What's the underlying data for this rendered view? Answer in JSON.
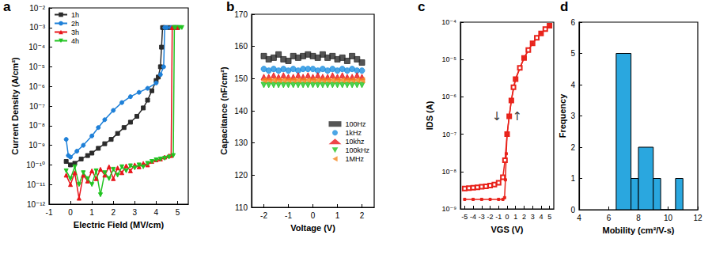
{
  "chart_data": [
    {
      "type": "line",
      "title": "a",
      "xlabel": "Electric Field (MV/cm)",
      "ylabel": "Current Density (A/cm²)",
      "xlim": [
        -1,
        5.5
      ],
      "xticks": [
        -1,
        0,
        1,
        2,
        3,
        4,
        5
      ],
      "ylim": [
        1e-12,
        0.01
      ],
      "yticks": [
        {
          "value": 1e-12,
          "label": "10⁻¹²"
        },
        {
          "value": 1e-11,
          "label": "10⁻¹¹"
        },
        {
          "value": 1e-10,
          "label": "10⁻¹⁰"
        },
        {
          "value": 1e-09,
          "label": "10⁻⁹"
        },
        {
          "value": 1e-08,
          "label": "10⁻⁸"
        },
        {
          "value": 1e-07,
          "label": "10⁻⁷"
        },
        {
          "value": 1e-06,
          "label": "10⁻⁶"
        },
        {
          "value": 1e-05,
          "label": "10⁻⁵"
        },
        {
          "value": 0.0001,
          "label": "10⁻⁴"
        },
        {
          "value": 0.001,
          "label": "10⁻³"
        },
        {
          "value": 0.01,
          "label": "10⁻²"
        }
      ],
      "log": "y",
      "grid": false,
      "legend": "upper left",
      "series": [
        {
          "name": "1h",
          "color": "#2b2b2b",
          "marker": "square",
          "line_style": "solid",
          "x": [
            -0.2,
            0,
            0.2,
            0.5,
            0.8,
            1,
            1.3,
            1.6,
            1.9,
            2.2,
            2.5,
            2.8,
            3.1,
            3.4,
            3.6,
            3.8,
            4,
            4.1,
            4.2,
            4.25,
            4.3,
            4.4,
            4.6,
            4.8,
            5
          ],
          "values": [
            1.5e-10,
            1e-10,
            1.2e-10,
            2e-10,
            3e-10,
            4e-10,
            7e-10,
            1.2e-09,
            2e-09,
            4e-09,
            8e-09,
            1.5e-08,
            3e-08,
            8e-08,
            2e-07,
            6e-07,
            2e-06,
            3e-06,
            1e-05,
            0.0001,
            0.001,
            0.001,
            0.001,
            0.001,
            0.001
          ]
        },
        {
          "name": "2h",
          "color": "#1e80d8",
          "marker": "circle",
          "line_style": "solid",
          "x": [
            -0.2,
            -0.1,
            0,
            0.3,
            0.6,
            1,
            1.3,
            1.6,
            2,
            2.4,
            2.8,
            3.2,
            3.6,
            4,
            4.2,
            4.35,
            4.4,
            4.5,
            4.7,
            4.9,
            5
          ],
          "values": [
            2e-09,
            3e-10,
            2.5e-10,
            5e-10,
            1e-09,
            3e-09,
            8e-09,
            2e-08,
            6e-08,
            1.5e-07,
            3e-07,
            5e-07,
            8e-07,
            1.5e-06,
            4e-06,
            1e-05,
            0.001,
            0.001,
            0.001,
            0.001,
            0.001
          ]
        },
        {
          "name": "3h",
          "color": "#e8161b",
          "marker": "triangle-up",
          "line_style": "solid",
          "x": [
            -0.2,
            0,
            0.2,
            0.4,
            0.6,
            0.8,
            1,
            1.2,
            1.4,
            1.6,
            1.8,
            2,
            2.2,
            2.4,
            2.6,
            2.8,
            3,
            3.2,
            3.4,
            3.6,
            3.8,
            4,
            4.2,
            4.4,
            4.6,
            4.7,
            4.75,
            4.8,
            5
          ],
          "values": [
            3e-11,
            1e-11,
            4e-11,
            2e-12,
            3e-11,
            1.5e-11,
            5e-11,
            2e-11,
            6e-11,
            3e-11,
            8e-11,
            2e-11,
            7e-11,
            4e-11,
            9e-11,
            5e-11,
            1e-10,
            8e-11,
            1.2e-10,
            1e-10,
            1.5e-10,
            1.8e-10,
            2e-10,
            2.5e-10,
            3e-10,
            3e-10,
            0.001,
            0.001,
            0.001
          ]
        },
        {
          "name": "4h",
          "color": "#22c422",
          "marker": "triangle-down",
          "line_style": "solid",
          "x": [
            -0.2,
            0,
            0.2,
            0.4,
            0.6,
            0.8,
            1,
            1.2,
            1.4,
            1.6,
            1.8,
            2,
            2.2,
            2.4,
            2.6,
            2.8,
            3,
            3.2,
            3.4,
            3.6,
            3.8,
            4,
            4.2,
            4.4,
            4.6,
            4.8,
            4.85,
            4.9,
            5.1,
            5.2
          ],
          "values": [
            5e-11,
            2e-11,
            8e-11,
            1e-11,
            4e-11,
            2e-11,
            1e-11,
            5e-11,
            3e-12,
            4e-11,
            2e-11,
            6e-11,
            3e-11,
            8e-11,
            5e-11,
            9e-11,
            7e-11,
            1e-10,
            8e-11,
            1.2e-10,
            1.5e-10,
            1.8e-10,
            2e-10,
            2.2e-10,
            2.5e-10,
            3e-10,
            0.001,
            0.001,
            0.001,
            0.001
          ]
        }
      ]
    },
    {
      "type": "scatter",
      "title": "b",
      "xlabel": "Voltage (V)",
      "ylabel": "Capacitance (nF/cm²)",
      "xlim": [
        -2.5,
        2.5
      ],
      "xticks": [
        -2,
        -1,
        0,
        1,
        2
      ],
      "ylim": [
        110,
        170
      ],
      "yticks": [
        110,
        120,
        130,
        140,
        150,
        160,
        170
      ],
      "grid": false,
      "legend": "center right",
      "series": [
        {
          "name": "100Hz",
          "color": "#2b2b2b",
          "marker": "square",
          "x": [
            -2,
            -1.8,
            -1.6,
            -1.4,
            -1.2,
            -1,
            -0.8,
            -0.6,
            -0.4,
            -0.2,
            0,
            0.2,
            0.4,
            0.6,
            0.8,
            1,
            1.2,
            1.4,
            1.6,
            1.8,
            2
          ],
          "values": [
            157,
            156,
            156.5,
            157.5,
            156,
            155.5,
            157,
            156.5,
            157,
            157.5,
            157,
            156.5,
            157.5,
            156.5,
            157,
            156,
            156.5,
            155.5,
            157,
            156,
            155
          ]
        },
        {
          "name": "1kHz",
          "color": "#1e90e0",
          "marker": "circle",
          "x": [
            -2,
            -1.8,
            -1.6,
            -1.4,
            -1.2,
            -1,
            -0.8,
            -0.6,
            -0.4,
            -0.2,
            0,
            0.2,
            0.4,
            0.6,
            0.8,
            1,
            1.2,
            1.4,
            1.6,
            1.8,
            2
          ],
          "values": [
            153,
            152.5,
            153,
            152.5,
            153,
            152.5,
            153,
            152.5,
            153,
            153,
            153,
            152.5,
            153,
            152.5,
            153,
            152.5,
            153,
            152.5,
            153,
            152.5,
            152.5
          ]
        },
        {
          "name": "10khz",
          "color": "#e8161b",
          "marker": "triangle-up",
          "x": [
            -2,
            -1.8,
            -1.6,
            -1.4,
            -1.2,
            -1,
            -0.8,
            -0.6,
            -0.4,
            -0.2,
            0,
            0.2,
            0.4,
            0.6,
            0.8,
            1,
            1.2,
            1.4,
            1.6,
            1.8,
            2
          ],
          "values": [
            150.5,
            150.5,
            151,
            150.5,
            151,
            150.5,
            150.5,
            151,
            150.5,
            151,
            150.5,
            151,
            150.5,
            150.5,
            151,
            150.5,
            151,
            150.5,
            150.5,
            151,
            150.5
          ]
        },
        {
          "name": "100kHz",
          "color": "#22c422",
          "marker": "triangle-down",
          "x": [
            -2,
            -1.8,
            -1.6,
            -1.4,
            -1.2,
            -1,
            -0.8,
            -0.6,
            -0.4,
            -0.2,
            0,
            0.2,
            0.4,
            0.6,
            0.8,
            1,
            1.2,
            1.4,
            1.6,
            1.8,
            2
          ],
          "values": [
            148,
            148,
            148,
            148,
            148,
            148,
            148,
            148,
            148,
            148,
            148,
            148,
            148,
            148,
            148,
            148,
            148,
            148,
            148,
            148,
            148
          ]
        },
        {
          "name": "1MHz",
          "color": "#f5871f",
          "marker": "triangle-left",
          "x": [
            -2,
            -1.8,
            -1.6,
            -1.4,
            -1.2,
            -1,
            -0.8,
            -0.6,
            -0.4,
            -0.2,
            0,
            0.2,
            0.4,
            0.6,
            0.8,
            1,
            1.2,
            1.4,
            1.6,
            1.8,
            2
          ],
          "values": [
            149.5,
            149.5,
            149.5,
            149.5,
            149.5,
            149.5,
            149.5,
            149.5,
            149.5,
            149.5,
            149.5,
            149.5,
            149.5,
            149.5,
            149.5,
            149.5,
            149.5,
            149.5,
            149.5,
            149.5,
            149.5
          ]
        }
      ]
    },
    {
      "type": "line",
      "title": "c",
      "xlabel": "VGS (V)",
      "ylabel": "IDS (A)",
      "xlim": [
        -5.5,
        5.5
      ],
      "xticks": [
        -5,
        -4,
        -3,
        -2,
        -1,
        0,
        1,
        2,
        3,
        4,
        5
      ],
      "ylim": [
        1e-09,
        0.0001
      ],
      "yticks": [
        {
          "value": 1e-09,
          "label": "10⁻⁹"
        },
        {
          "value": 1e-08,
          "label": "10⁻⁸"
        },
        {
          "value": 1e-07,
          "label": "10⁻⁷"
        },
        {
          "value": 1e-06,
          "label": "10⁻⁶"
        },
        {
          "value": 1e-05,
          "label": "10⁻⁵"
        },
        {
          "value": 0.0001,
          "label": "10⁻⁴"
        }
      ],
      "log": "y",
      "grid": false,
      "series": [
        {
          "color": "#e8221a",
          "marker": "open-square",
          "line_style": "solid",
          "x": [
            -5,
            -4.5,
            -4,
            -3.5,
            -3,
            -2.5,
            -2,
            -1.5,
            -1,
            -0.5,
            -0.25,
            0,
            0.25,
            0.5,
            0.75,
            1,
            1.5,
            2,
            2.5,
            3,
            3.5,
            4,
            4.5,
            5
          ],
          "values": [
            3.5e-09,
            3.6e-09,
            3.7e-09,
            3.8e-09,
            3.9e-09,
            4e-09,
            4.2e-09,
            4.5e-09,
            5e-09,
            7e-09,
            2e-08,
            1e-07,
            3e-07,
            8e-07,
            1.8e-06,
            3e-06,
            6e-06,
            1.1e-05,
            1.8e-05,
            2.7e-05,
            3.8e-05,
            5e-05,
            6.5e-05,
            8e-05
          ]
        },
        {
          "color": "#e8221a",
          "marker": "square",
          "line_style": "solid",
          "x": [
            5,
            4,
            3,
            2,
            1,
            0.5,
            0.25,
            0,
            -0.1,
            -0.2,
            -0.3,
            -0.5,
            -1,
            -2,
            -3,
            -4,
            -5
          ],
          "values": [
            8e-05,
            5e-05,
            2.7e-05,
            1.1e-05,
            3e-06,
            8e-07,
            3e-07,
            1e-07,
            3e-08,
            6e-09,
            2e-09,
            1.8e-09,
            1.8e-09,
            1.8e-09,
            1.8e-09,
            1.8e-09,
            1.8e-09
          ]
        }
      ],
      "annotations": [
        {
          "text": "↓",
          "x": -1.2,
          "y": 3e-07
        },
        {
          "text": "↑",
          "x": 1.2,
          "y": 3e-07
        }
      ]
    },
    {
      "type": "histogram",
      "title": "d",
      "xlabel": "Mobility (cm²/V-s)",
      "ylabel": "Frequency",
      "bins": [
        6.5,
        7.5,
        8,
        9,
        9.5,
        10.5,
        11
      ],
      "values": [
        5,
        1,
        2,
        1,
        0,
        1
      ],
      "color": "#2aa7df",
      "xlim": [
        4,
        12
      ],
      "xticks": [
        4,
        6,
        8,
        10,
        12
      ],
      "ylim": [
        0,
        6
      ],
      "yticks": [
        0,
        1,
        2,
        3,
        4,
        5,
        6
      ],
      "grid": false
    }
  ]
}
